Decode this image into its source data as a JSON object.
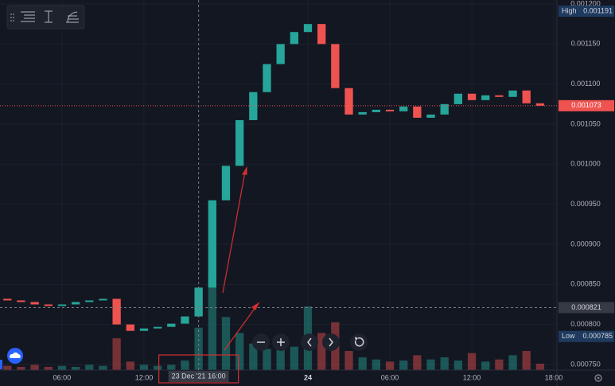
{
  "chart_data": {
    "type": "candlestick",
    "x": [
      2,
      3,
      4,
      5,
      6,
      7,
      8,
      9,
      10,
      11,
      12,
      13,
      14,
      15,
      16,
      17,
      18,
      19,
      20,
      21,
      22,
      23,
      24,
      25,
      26,
      27,
      28,
      29,
      30,
      31,
      32,
      33,
      34,
      35,
      36,
      37,
      38,
      39,
      40,
      41
    ],
    "open": [
      0.000832,
      0.00083,
      0.000828,
      0.000825,
      0.000823,
      0.000825,
      0.000828,
      0.00083,
      0.000832,
      0.0008,
      0.000792,
      0.000795,
      0.000797,
      0.000801,
      0.00081,
      0.000846,
      0.000955,
      0.000998,
      0.001055,
      0.00109,
      0.001125,
      0.00115,
      0.001165,
      0.001175,
      0.00115,
      0.001095,
      0.001062,
      0.001065,
      0.001068,
      0.001066,
      0.001072,
      0.001058,
      0.001062,
      0.001075,
      0.001088,
      0.00108,
      0.001086,
      0.001084,
      0.001092,
      0.001076
    ],
    "high": 0.001191,
    "low": 0.000785,
    "close": [
      0.00083,
      0.000828,
      0.000825,
      0.000823,
      0.000825,
      0.000828,
      0.00083,
      0.000832,
      0.0008,
      0.000792,
      0.000795,
      0.000797,
      0.000801,
      0.00081,
      0.000846,
      0.000955,
      0.000998,
      0.001055,
      0.00109,
      0.001125,
      0.00115,
      0.001165,
      0.001175,
      0.00115,
      0.001095,
      0.001062,
      0.001065,
      0.001068,
      0.001066,
      0.001072,
      0.001058,
      0.001062,
      0.001075,
      0.001088,
      0.00108,
      0.001086,
      0.001084,
      0.001092,
      0.001076,
      0.001073
    ],
    "volume": [
      4,
      3,
      5,
      3,
      4,
      3,
      5,
      4,
      30,
      8,
      5,
      4,
      5,
      9,
      40,
      90,
      50,
      35,
      25,
      20,
      30,
      22,
      60,
      35,
      45,
      18,
      12,
      10,
      8,
      9,
      14,
      10,
      12,
      9,
      16,
      8,
      10,
      14,
      18,
      6
    ],
    "up_color": "#26a69a",
    "down_color": "#ef5350",
    "xlim": [
      1.46,
      42.23
    ],
    "ylim": [
      0.00075,
      0.0012
    ],
    "xticks": [
      {
        "value": 6,
        "label": "06:00"
      },
      {
        "value": 12,
        "label": "12:00"
      },
      {
        "value": 24,
        "label": "24",
        "bold": true
      },
      {
        "value": 30,
        "label": "06:00"
      },
      {
        "value": 36,
        "label": "12:00"
      },
      {
        "value": 42,
        "label": "18:00"
      }
    ],
    "yticks": [
      {
        "value": 0.0012,
        "label": "0.001200"
      },
      {
        "value": 0.00115,
        "label": "0.001150"
      },
      {
        "value": 0.0011,
        "label": "0.001100"
      },
      {
        "value": 0.00105,
        "label": "0.001050"
      },
      {
        "value": 0.001,
        "label": "0.001000"
      },
      {
        "value": 0.00095,
        "label": "0.000950"
      },
      {
        "value": 0.0009,
        "label": "0.000900"
      },
      {
        "value": 0.00085,
        "label": "0.000850"
      },
      {
        "value": 0.0008,
        "label": "0.000800"
      },
      {
        "value": 0.00075,
        "label": "0.000750"
      }
    ],
    "grid": true,
    "high_label": "High",
    "low_label": "Low",
    "last_price": 0.001073,
    "crosshair": {
      "price": 0.000821,
      "date_label": "23 Dec '21",
      "time": {
        "value": 16,
        "label": "16:00"
      }
    }
  }
}
